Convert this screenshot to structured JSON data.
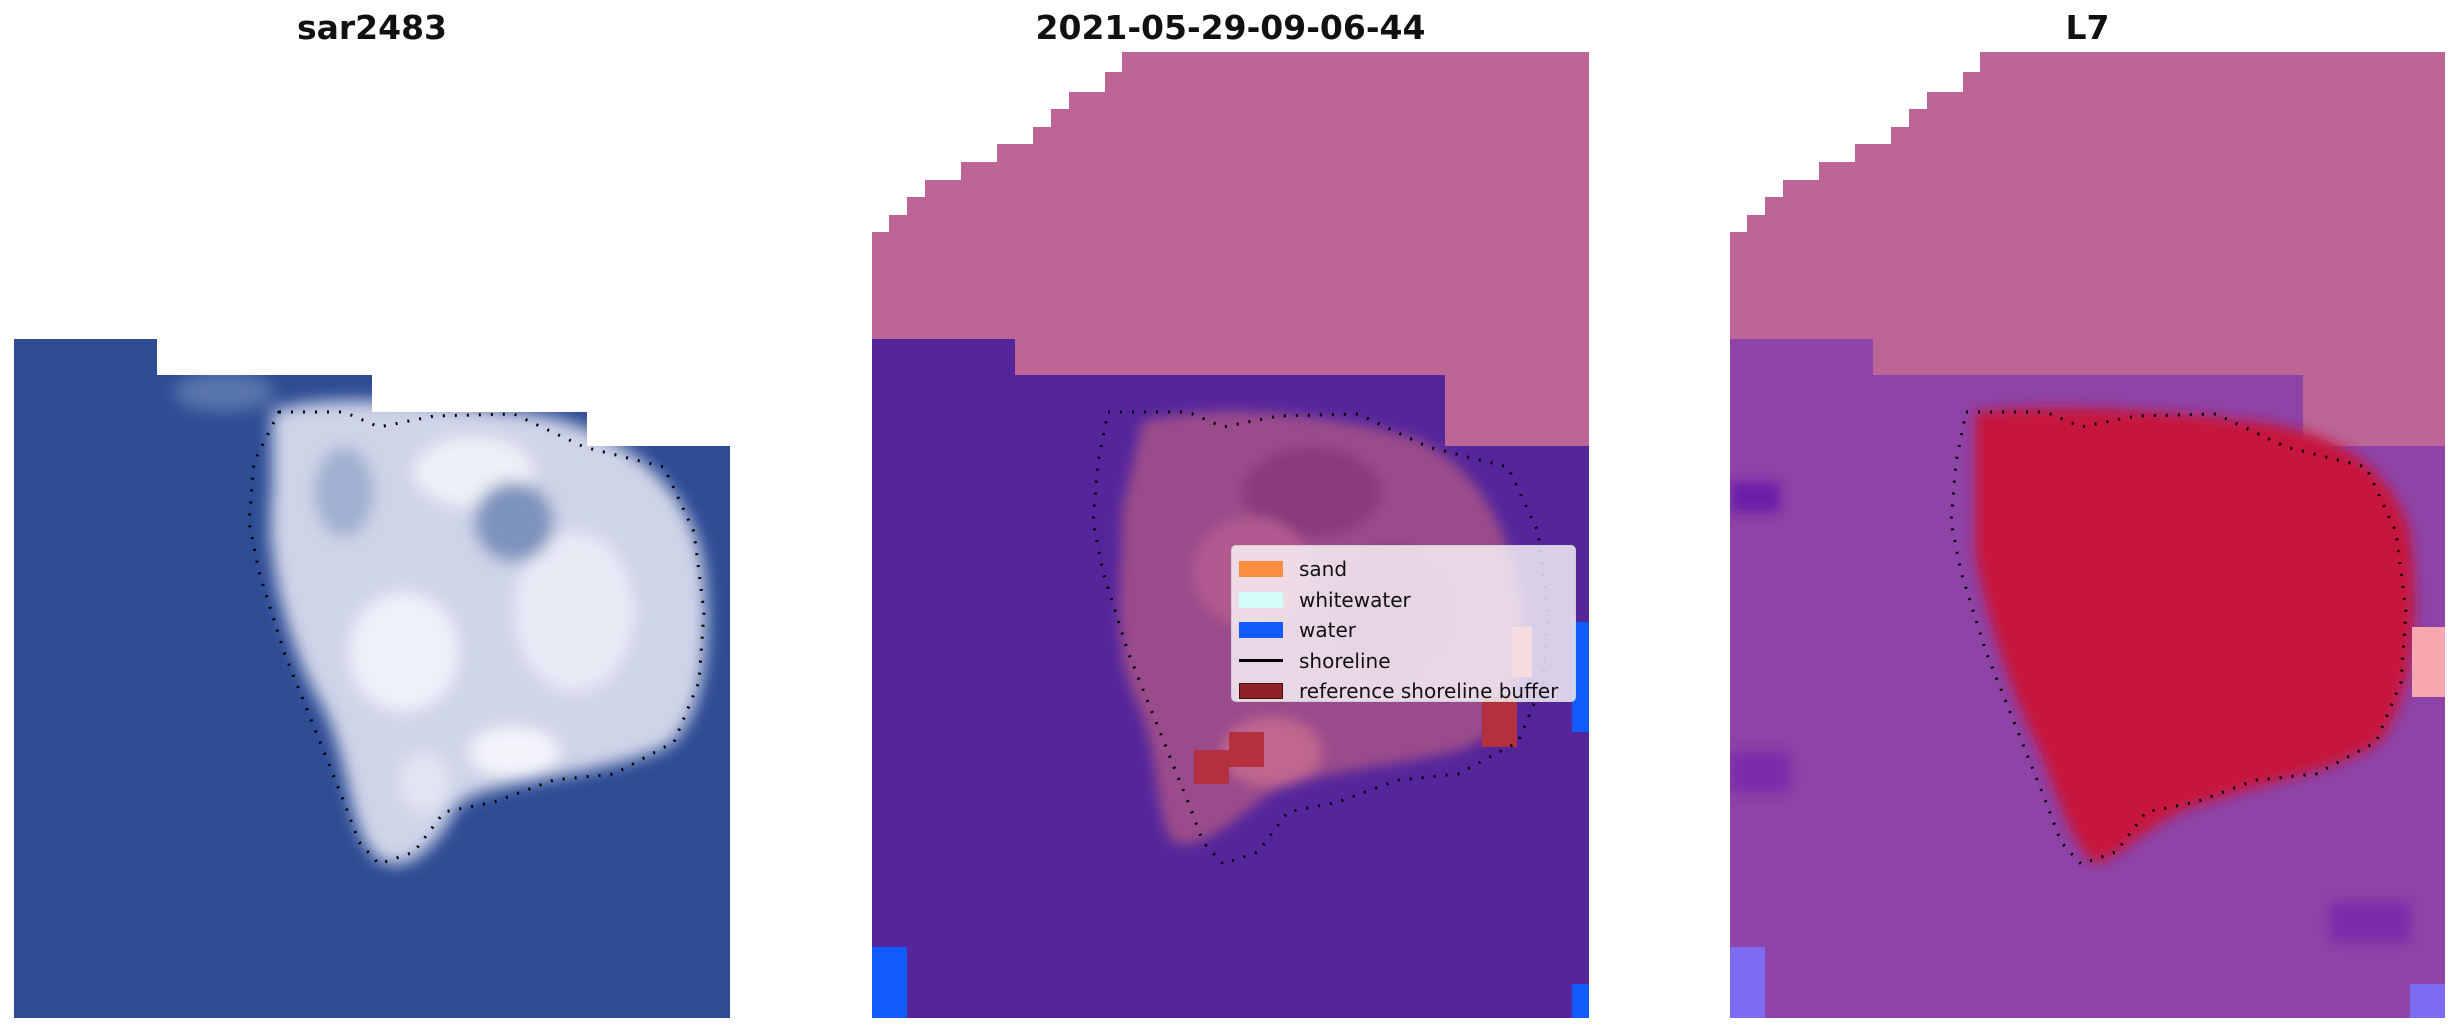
{
  "panels": [
    {
      "title": "sar2483"
    },
    {
      "title": "2021-05-29-09-06-44"
    },
    {
      "title": "L7"
    }
  ],
  "legend": {
    "items": [
      {
        "label": "sand",
        "color": "#fa8e3e",
        "type": "patch"
      },
      {
        "label": "whitewater",
        "color": "#d4fcfb",
        "type": "patch"
      },
      {
        "label": "water",
        "color": "#0f5cfb",
        "type": "patch"
      },
      {
        "label": "shoreline",
        "color": "#000000",
        "type": "line"
      },
      {
        "label": "reference shoreline buffer",
        "color": "#8e2227",
        "type": "patch",
        "edge": "#4a0f12"
      }
    ]
  },
  "colors": {
    "ocean_rgb": "#2e4c94",
    "no_data_mask": "#bc6596",
    "classified_water": "#55269b",
    "index_background": "#8e43a6",
    "index_high": "#c6123e",
    "land_rgb": "#d9dcec"
  }
}
